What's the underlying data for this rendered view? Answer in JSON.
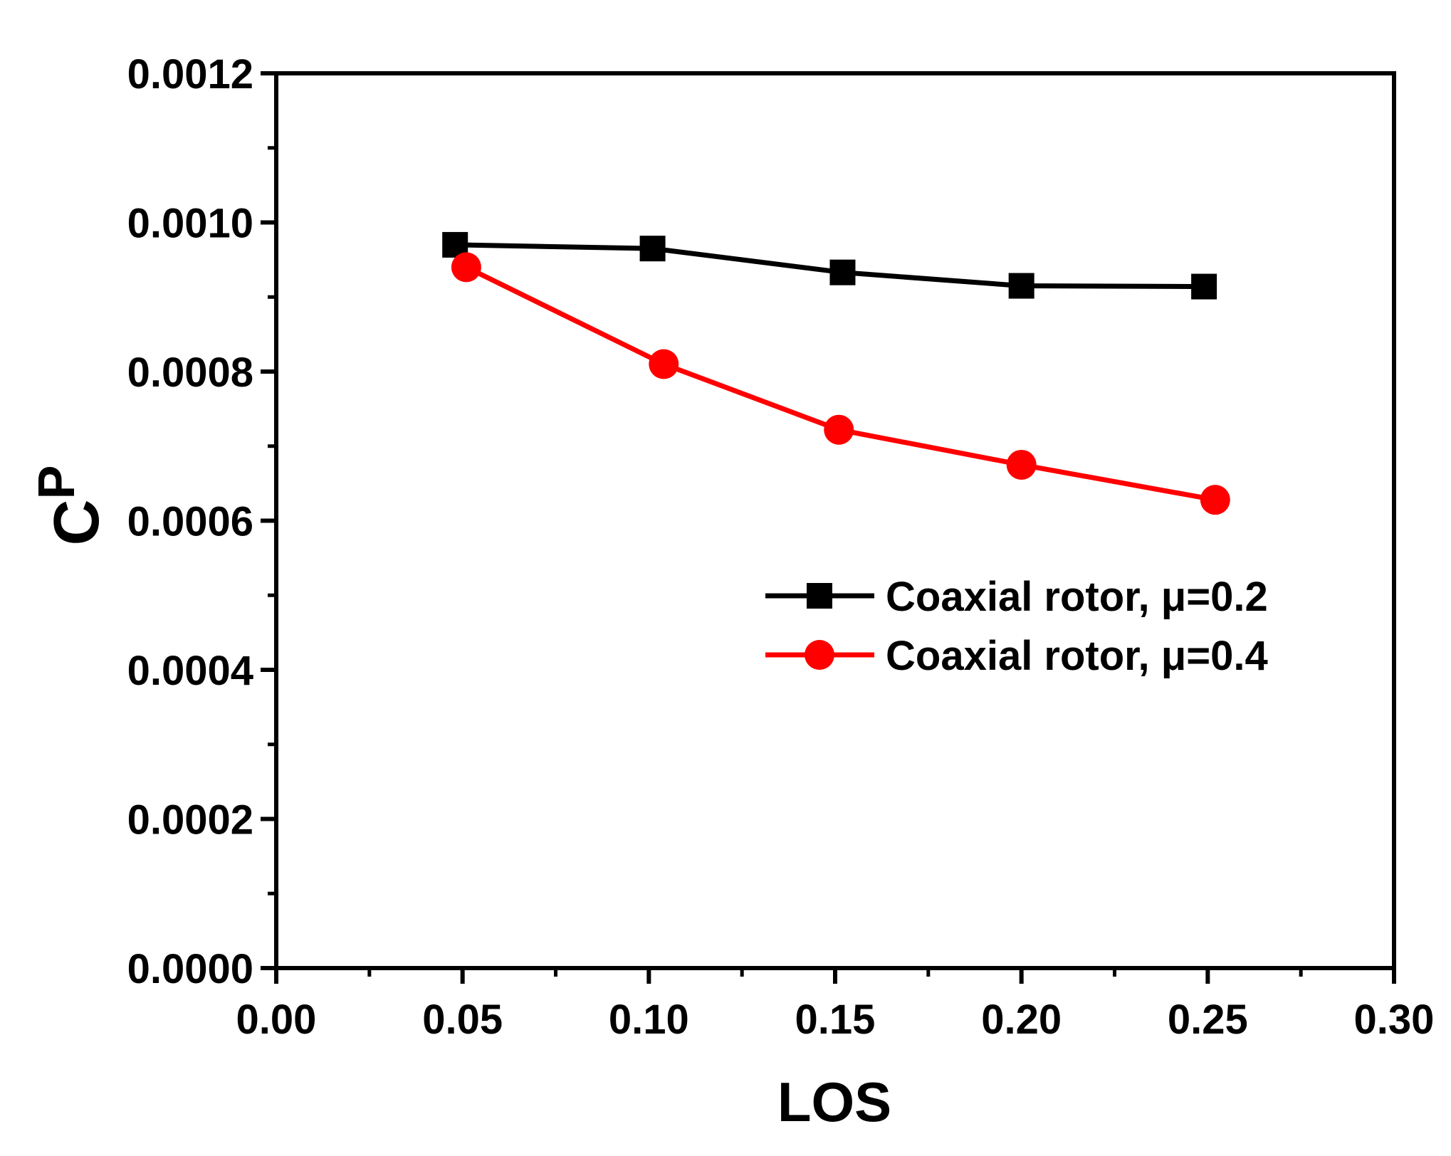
{
  "chart_data": {
    "type": "line",
    "title": "",
    "xlabel": "LOS",
    "ylabel": {
      "main": "C",
      "subscript": "P"
    },
    "xlim": [
      0.0,
      0.3
    ],
    "ylim": [
      0.0,
      0.0012
    ],
    "x_ticks": [
      0.0,
      0.05,
      0.1,
      0.15,
      0.2,
      0.25,
      0.3
    ],
    "x_tick_labels": [
      "0.00",
      "0.05",
      "0.10",
      "0.15",
      "0.20",
      "0.25",
      "0.30"
    ],
    "y_ticks": [
      0.0,
      0.0002,
      0.0004,
      0.0006,
      0.0008,
      0.001,
      0.0012
    ],
    "y_tick_labels": [
      "0.0000",
      "0.0002",
      "0.0004",
      "0.0006",
      "0.0008",
      "0.0010",
      "0.0012"
    ],
    "grid": false,
    "legend_position": "center-right",
    "series": [
      {
        "name": "Coaxial rotor, μ=0.2",
        "color": "#000000",
        "marker": "square",
        "x": [
          0.048,
          0.101,
          0.152,
          0.2,
          0.249
        ],
        "y": [
          0.00097,
          0.000965,
          0.000933,
          0.000915,
          0.000914
        ]
      },
      {
        "name": "Coaxial rotor, μ=0.4",
        "color": "#ff0000",
        "marker": "circle",
        "x": [
          0.051,
          0.104,
          0.151,
          0.2,
          0.252
        ],
        "y": [
          0.00094,
          0.00081,
          0.000722,
          0.000675,
          0.000628
        ]
      }
    ]
  }
}
